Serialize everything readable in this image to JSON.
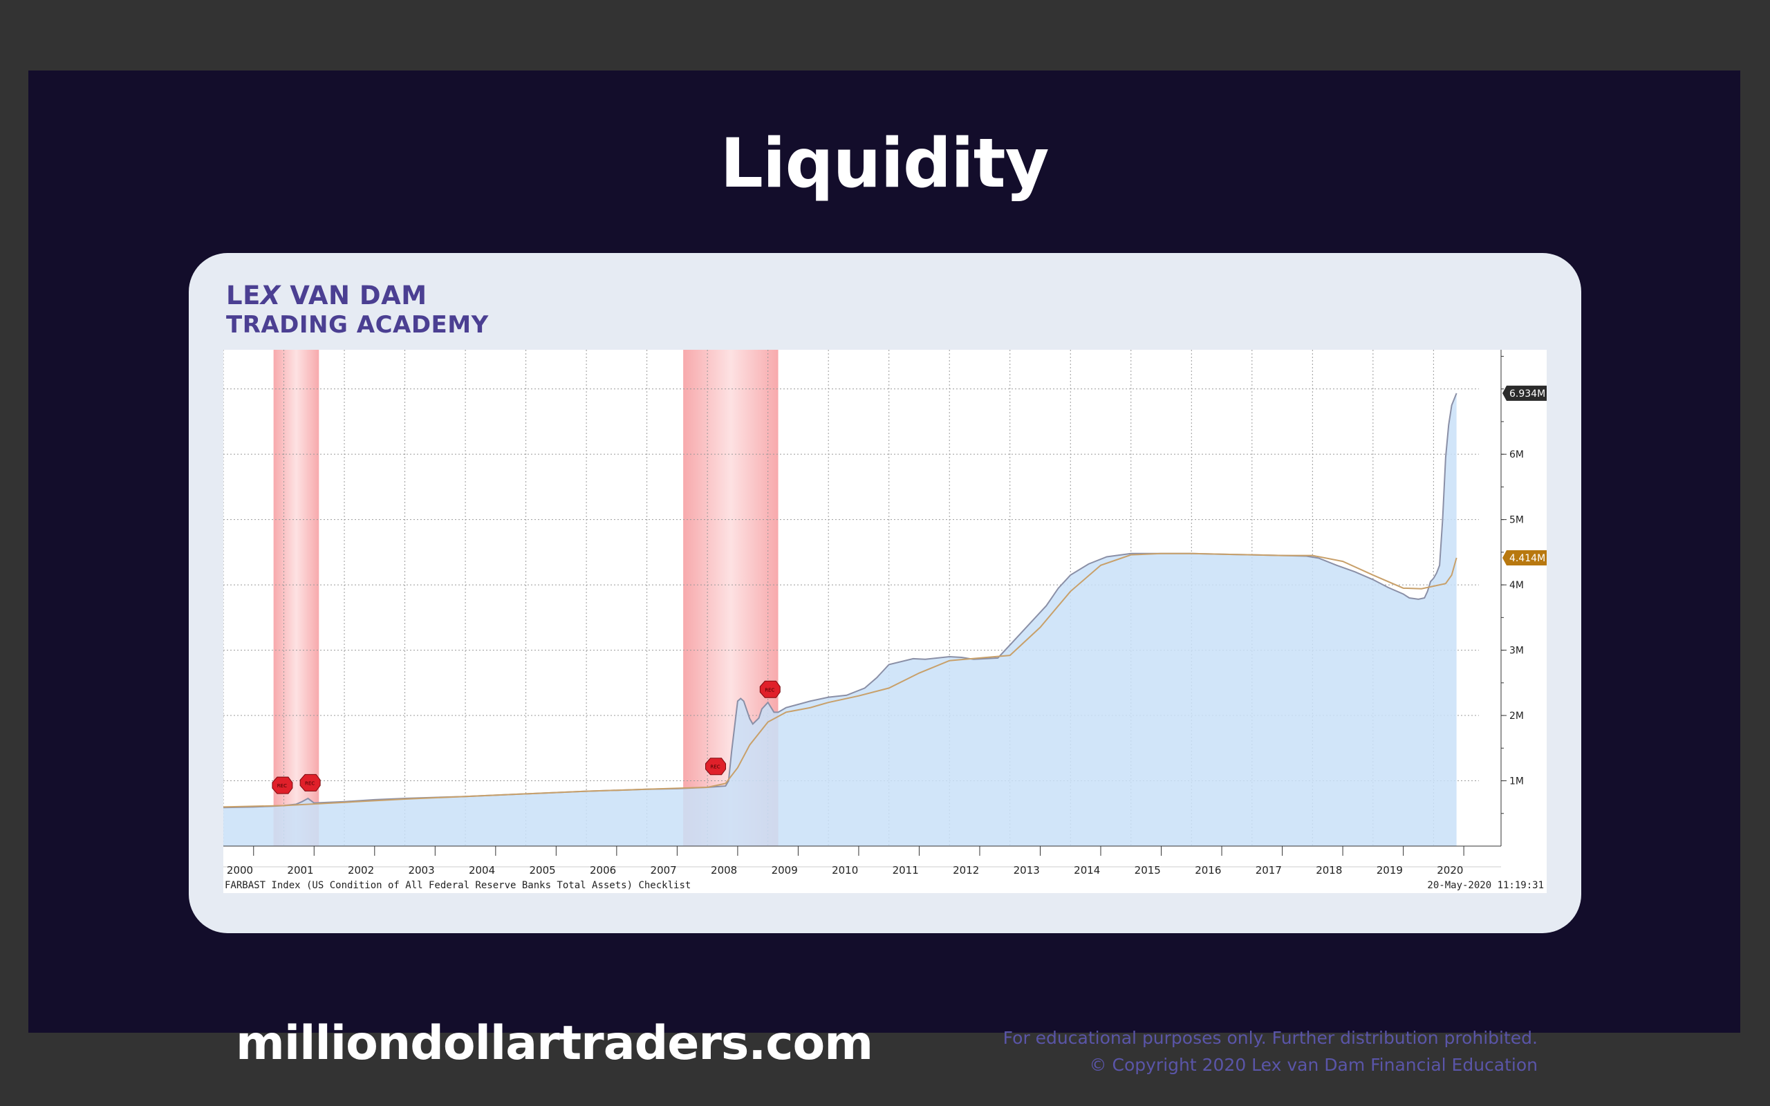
{
  "slide": {
    "title": "Liquidity",
    "website": "milliondollartraders.com",
    "disclaimer": "For educational purposes only. Further distribution prohibited.",
    "copyright": "© Copyright 2020 Lex van Dam Financial Education"
  },
  "logo": {
    "line1_a": "LE",
    "line1_x": "X",
    "line1_b": " VAN DAM",
    "line2": "TRADING ACADEMY"
  },
  "colors": {
    "slide_bg": "#130d2b",
    "card_bg": "#e6ebf3",
    "logo": "#4b3f92",
    "area_fill": "#c9e1f8",
    "area_line": "#8a8fa6",
    "ma_line": "#c8a06a",
    "recession": "#f7a5a8",
    "last_label_main": "#2b2b2b",
    "last_label_ma": "#b8780f"
  },
  "chart_data": {
    "type": "area",
    "footer_left": "FARBAST Index (US Condition of All Federal Reserve Banks Total Assets) Checklist",
    "footer_right": "20-May-2020  11:19:31",
    "x_domain": [
      2000.0,
      2020.75
    ],
    "ylim": [
      0,
      7.6
    ],
    "y_unit": "M",
    "y_ticks": [
      1,
      2,
      3,
      4,
      5,
      6
    ],
    "y_tick_labels": [
      "1M",
      "2M",
      "3M",
      "4M",
      "5M",
      "6M"
    ],
    "x_tick_labels": [
      "2000",
      "2001",
      "2002",
      "2003",
      "2004",
      "2005",
      "2006",
      "2007",
      "2008",
      "2009",
      "2010",
      "2011",
      "2012",
      "2013",
      "2014",
      "2015",
      "2016",
      "2017",
      "2018",
      "2019",
      "2020"
    ],
    "x_tick_positions": [
      2000,
      2001,
      2002,
      2003,
      2004,
      2005,
      2006,
      2007,
      2008,
      2009,
      2010,
      2011,
      2012,
      2013,
      2014,
      2015,
      2016,
      2017,
      2018,
      2019,
      2020
    ],
    "grid": true,
    "recessions": [
      [
        2000.83,
        2001.58
      ],
      [
        2007.6,
        2009.17
      ]
    ],
    "markers": [
      {
        "x": 2000.97,
        "y": 0.93,
        "label": "REC"
      },
      {
        "x": 2001.43,
        "y": 0.97,
        "label": "REC"
      },
      {
        "x": 2008.13,
        "y": 1.22,
        "label": "REC"
      },
      {
        "x": 2009.03,
        "y": 2.4,
        "label": "REC"
      }
    ],
    "series": [
      {
        "kind": "area",
        "last_label": "6.934M",
        "last_value": 6.934,
        "x": [
          2000.0,
          2000.5,
          2000.8,
          2001.0,
          2001.2,
          2001.3,
          2001.4,
          2001.5,
          2002.0,
          2002.5,
          2003.0,
          2004.0,
          2005.0,
          2006.0,
          2007.0,
          2007.5,
          2008.0,
          2008.3,
          2008.35,
          2008.4,
          2008.5,
          2008.55,
          2008.6,
          2008.7,
          2008.75,
          2008.85,
          2008.9,
          2009.0,
          2009.1,
          2009.17,
          2009.3,
          2009.5,
          2009.7,
          2010.0,
          2010.3,
          2010.6,
          2010.8,
          2011.0,
          2011.4,
          2011.6,
          2011.8,
          2012.0,
          2012.2,
          2012.4,
          2012.8,
          2012.9,
          2013.0,
          2013.3,
          2013.6,
          2013.8,
          2014.0,
          2014.3,
          2014.6,
          2015.0,
          2015.5,
          2016.0,
          2016.5,
          2017.0,
          2017.5,
          2017.9,
          2018.1,
          2018.4,
          2018.7,
          2019.0,
          2019.25,
          2019.5,
          2019.6,
          2019.75,
          2019.85,
          2019.9,
          2019.95,
          2020.0,
          2020.05,
          2020.1,
          2020.15,
          2020.2,
          2020.25,
          2020.3,
          2020.38
        ],
        "y": [
          0.59,
          0.6,
          0.61,
          0.62,
          0.64,
          0.68,
          0.73,
          0.66,
          0.68,
          0.71,
          0.73,
          0.76,
          0.8,
          0.84,
          0.87,
          0.88,
          0.9,
          0.92,
          1.0,
          1.45,
          2.22,
          2.26,
          2.22,
          1.95,
          1.87,
          1.96,
          2.1,
          2.2,
          2.05,
          2.05,
          2.12,
          2.17,
          2.22,
          2.28,
          2.31,
          2.42,
          2.58,
          2.78,
          2.87,
          2.86,
          2.88,
          2.9,
          2.89,
          2.86,
          2.88,
          2.98,
          3.08,
          3.38,
          3.68,
          3.95,
          4.15,
          4.32,
          4.43,
          4.48,
          4.48,
          4.48,
          4.47,
          4.46,
          4.45,
          4.44,
          4.41,
          4.3,
          4.2,
          4.08,
          3.96,
          3.86,
          3.8,
          3.78,
          3.8,
          3.9,
          4.05,
          4.1,
          4.18,
          4.3,
          5.0,
          5.95,
          6.45,
          6.75,
          6.934
        ]
      },
      {
        "kind": "line",
        "last_label": "4.414M",
        "last_value": 4.414,
        "x": [
          2000.0,
          2001.0,
          2002.0,
          2003.0,
          2004.0,
          2005.0,
          2006.0,
          2007.0,
          2008.0,
          2008.3,
          2008.5,
          2008.7,
          2009.0,
          2009.3,
          2009.7,
          2010.0,
          2010.5,
          2011.0,
          2011.5,
          2012.0,
          2012.5,
          2013.0,
          2013.5,
          2014.0,
          2014.5,
          2015.0,
          2015.5,
          2016.0,
          2016.5,
          2017.0,
          2017.5,
          2018.0,
          2018.5,
          2019.0,
          2019.5,
          2019.8,
          2020.0,
          2020.2,
          2020.3,
          2020.38
        ],
        "y": [
          0.6,
          0.62,
          0.67,
          0.72,
          0.76,
          0.8,
          0.84,
          0.87,
          0.9,
          0.96,
          1.2,
          1.55,
          1.9,
          2.05,
          2.12,
          2.2,
          2.3,
          2.42,
          2.65,
          2.84,
          2.88,
          2.92,
          3.35,
          3.9,
          4.3,
          4.46,
          4.48,
          4.48,
          4.47,
          4.46,
          4.45,
          4.45,
          4.36,
          4.15,
          3.95,
          3.94,
          3.98,
          4.02,
          4.15,
          4.414
        ]
      }
    ]
  }
}
